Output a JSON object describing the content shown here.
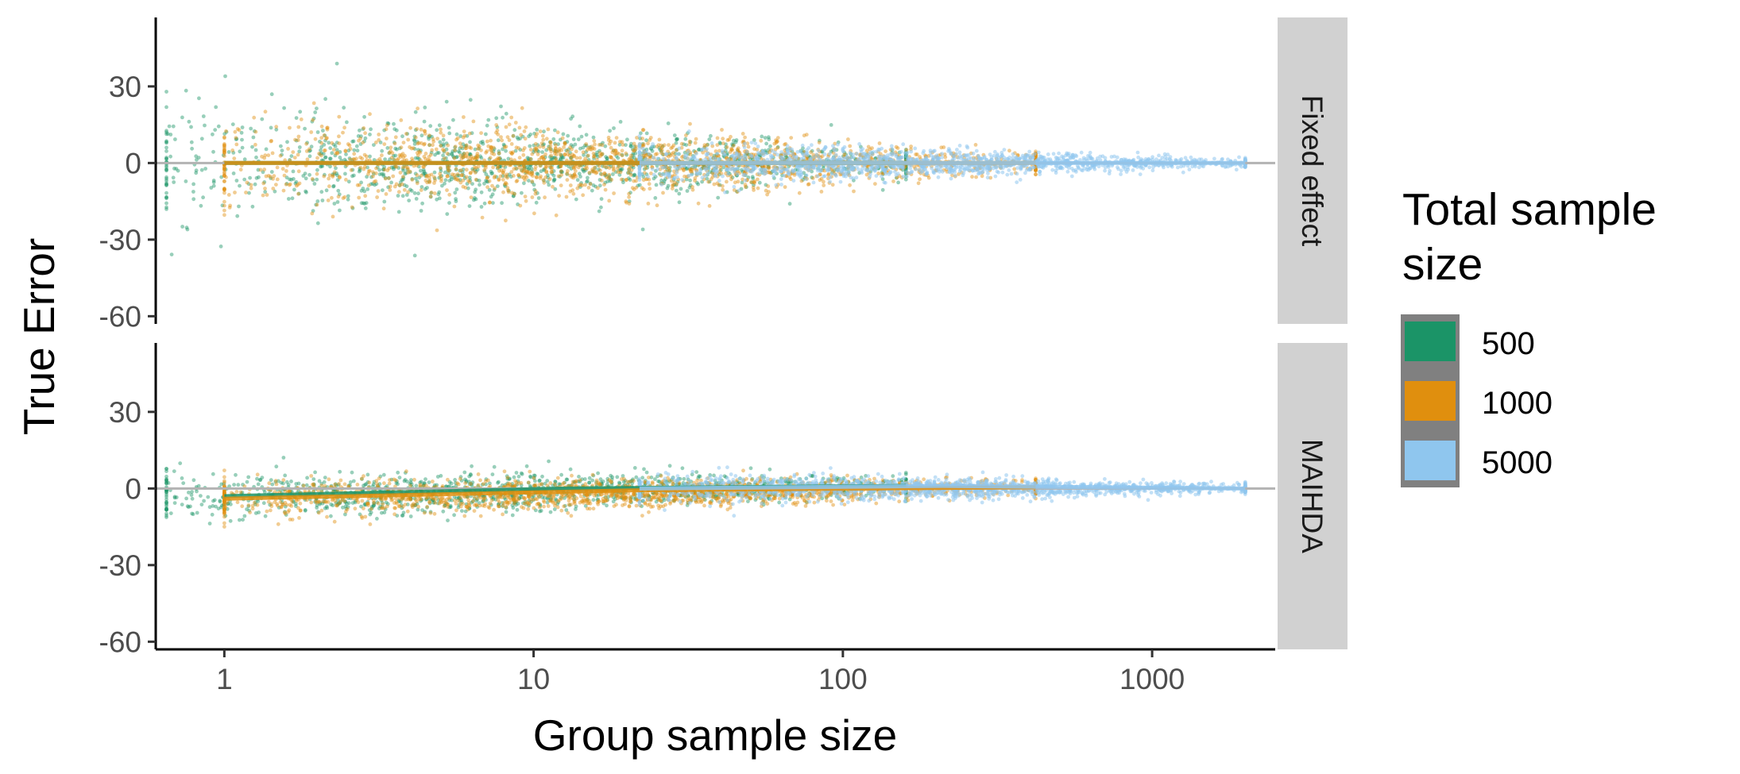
{
  "chart_data": {
    "type": "scatter",
    "xlabel": "Group sample size",
    "ylabel": "True Error",
    "x_scale": "log10",
    "xlim": [
      0.6,
      2500
    ],
    "ylim": [
      -63,
      57
    ],
    "x_ticks": [
      {
        "value": 1,
        "label": "1"
      },
      {
        "value": 10,
        "label": "10"
      },
      {
        "value": 100,
        "label": "100"
      },
      {
        "value": 1000,
        "label": "1000"
      }
    ],
    "y_ticks": [
      {
        "value": 30,
        "label": "30"
      },
      {
        "value": 0,
        "label": "0"
      },
      {
        "value": -30,
        "label": "-30"
      },
      {
        "value": -60,
        "label": "-60"
      }
    ],
    "reference_line": 0,
    "grid": false,
    "legend": {
      "title_lines": [
        "Total sample",
        "size"
      ],
      "placement": "right",
      "entries": [
        {
          "label": "500",
          "color": "#1b9467"
        },
        {
          "label": "1000",
          "color": "#e08f0e"
        },
        {
          "label": "5000",
          "color": "#8fc6ee"
        }
      ]
    },
    "series": [
      {
        "name": "500",
        "color": "#1b9467",
        "x_range": [
          0.65,
          160
        ],
        "spread_fixed": [
          12,
          3
        ],
        "spread_maihda": [
          5,
          2
        ],
        "trend_maihda": [
          -3,
          1
        ]
      },
      {
        "name": "1000",
        "color": "#e08f0e",
        "x_range": [
          1,
          420
        ],
        "spread_fixed": [
          9,
          2.5
        ],
        "spread_maihda": [
          4,
          1.8
        ],
        "trend_maihda": [
          -4,
          0.5
        ]
      },
      {
        "name": "5000",
        "color": "#8fc6ee",
        "x_range": [
          22,
          2000
        ],
        "spread_fixed": [
          4,
          1
        ],
        "spread_maihda": [
          3,
          1
        ],
        "trend_maihda": [
          0,
          0
        ]
      }
    ],
    "panels": [
      {
        "label": "Fixed effect"
      },
      {
        "label": "MAIHDA"
      }
    ]
  }
}
